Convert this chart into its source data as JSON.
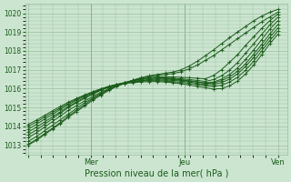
{
  "title": "",
  "xlabel": "Pression niveau de la mer( hPa )",
  "ylabel": "",
  "background_color": "#cce5d0",
  "plot_bg_color": "#cce5d0",
  "grid_color": "#9abfa0",
  "line_color": "#1a5c1a",
  "marker_color": "#1a5c1a",
  "ylim": [
    1012.5,
    1020.5
  ],
  "yticks": [
    1013,
    1014,
    1015,
    1016,
    1017,
    1018,
    1019,
    1020
  ],
  "series": [
    [
      1013.05,
      1013.3,
      1013.6,
      1013.9,
      1014.2,
      1014.55,
      1014.85,
      1015.15,
      1015.45,
      1015.7,
      1015.95,
      1016.15,
      1016.3,
      1016.45,
      1016.55,
      1016.65,
      1016.7,
      1016.75,
      1016.8,
      1016.9,
      1017.05,
      1017.25,
      1017.5,
      1017.75,
      1018.05,
      1018.35,
      1018.65,
      1018.95,
      1019.25,
      1019.55,
      1019.8,
      1020.05
    ],
    [
      1013.2,
      1013.45,
      1013.75,
      1014.05,
      1014.35,
      1014.65,
      1014.95,
      1015.25,
      1015.5,
      1015.75,
      1015.95,
      1016.15,
      1016.3,
      1016.42,
      1016.52,
      1016.58,
      1016.62,
      1016.63,
      1016.62,
      1016.6,
      1016.58,
      1016.55,
      1016.52,
      1016.7,
      1017.0,
      1017.4,
      1017.8,
      1018.3,
      1018.75,
      1019.2,
      1019.6,
      1019.95
    ],
    [
      1013.4,
      1013.65,
      1013.95,
      1014.25,
      1014.55,
      1014.85,
      1015.1,
      1015.35,
      1015.58,
      1015.8,
      1016.0,
      1016.17,
      1016.3,
      1016.42,
      1016.5,
      1016.55,
      1016.57,
      1016.57,
      1016.55,
      1016.52,
      1016.48,
      1016.43,
      1016.38,
      1016.48,
      1016.68,
      1016.98,
      1017.38,
      1017.88,
      1018.38,
      1018.88,
      1019.38,
      1019.78
    ],
    [
      1013.55,
      1013.8,
      1014.1,
      1014.4,
      1014.7,
      1015.0,
      1015.25,
      1015.48,
      1015.7,
      1015.9,
      1016.08,
      1016.22,
      1016.33,
      1016.43,
      1016.5,
      1016.54,
      1016.55,
      1016.54,
      1016.51,
      1016.47,
      1016.42,
      1016.36,
      1016.3,
      1016.35,
      1016.5,
      1016.75,
      1017.1,
      1017.55,
      1018.05,
      1018.6,
      1019.15,
      1019.6
    ],
    [
      1013.7,
      1013.95,
      1014.22,
      1014.5,
      1014.78,
      1015.05,
      1015.3,
      1015.53,
      1015.73,
      1015.92,
      1016.08,
      1016.2,
      1016.3,
      1016.38,
      1016.44,
      1016.48,
      1016.5,
      1016.5,
      1016.48,
      1016.45,
      1016.4,
      1016.35,
      1016.28,
      1016.3,
      1016.42,
      1016.62,
      1016.92,
      1017.32,
      1017.82,
      1018.35,
      1018.9,
      1019.4
    ],
    [
      1013.85,
      1014.1,
      1014.37,
      1014.63,
      1014.9,
      1015.15,
      1015.38,
      1015.6,
      1015.78,
      1015.95,
      1016.1,
      1016.22,
      1016.3,
      1016.37,
      1016.42,
      1016.45,
      1016.46,
      1016.45,
      1016.43,
      1016.4,
      1016.35,
      1016.28,
      1016.22,
      1016.22,
      1016.32,
      1016.5,
      1016.78,
      1017.18,
      1017.65,
      1018.18,
      1018.72,
      1019.22
    ],
    [
      1014.0,
      1014.22,
      1014.48,
      1014.73,
      1014.98,
      1015.22,
      1015.44,
      1015.64,
      1015.82,
      1015.98,
      1016.12,
      1016.23,
      1016.3,
      1016.36,
      1016.4,
      1016.42,
      1016.42,
      1016.4,
      1016.37,
      1016.33,
      1016.28,
      1016.22,
      1016.15,
      1016.12,
      1016.18,
      1016.35,
      1016.6,
      1016.98,
      1017.45,
      1018.0,
      1018.55,
      1019.05
    ],
    [
      1014.1,
      1014.32,
      1014.57,
      1014.82,
      1015.06,
      1015.28,
      1015.48,
      1015.66,
      1015.83,
      1015.98,
      1016.11,
      1016.2,
      1016.27,
      1016.32,
      1016.35,
      1016.37,
      1016.37,
      1016.35,
      1016.31,
      1016.26,
      1016.19,
      1016.12,
      1016.05,
      1015.98,
      1016.0,
      1016.15,
      1016.4,
      1016.78,
      1017.25,
      1017.8,
      1018.38,
      1018.88
    ],
    [
      1013.0,
      1013.25,
      1013.55,
      1013.85,
      1014.15,
      1014.48,
      1014.78,
      1015.08,
      1015.38,
      1015.65,
      1015.9,
      1016.12,
      1016.28,
      1016.45,
      1016.58,
      1016.68,
      1016.75,
      1016.82,
      1016.88,
      1017.0,
      1017.2,
      1017.45,
      1017.75,
      1018.05,
      1018.38,
      1018.7,
      1019.0,
      1019.3,
      1019.6,
      1019.85,
      1020.05,
      1020.2
    ]
  ],
  "n_points": 32
}
